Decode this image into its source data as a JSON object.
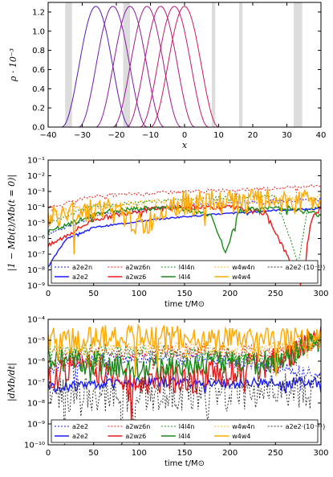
{
  "chart_data": [
    {
      "type": "line",
      "xlabel": "x",
      "ylabel": "ρ · 10⁻³",
      "xlim": [
        -40,
        40
      ],
      "ylim": [
        0,
        1.3
      ],
      "xticks": [
        "−40",
        "−30",
        "−20",
        "−10",
        "0",
        "10",
        "20",
        "30",
        "40"
      ],
      "yticks": [
        "0.0",
        "0.2",
        "0.4",
        "0.6",
        "0.8",
        "1.0",
        "1.2"
      ],
      "grey_bands": [
        [
          -35,
          -33
        ],
        [
          -18,
          -16
        ],
        [
          8,
          9
        ],
        [
          16,
          17
        ],
        [
          32,
          34.5
        ]
      ],
      "peak_value": 1.26,
      "peaks": [
        -26,
        -21,
        -16,
        -11,
        -7,
        -3,
        0
      ],
      "colors": [
        "#5a1ab0",
        "#7a1aa8",
        "#8f1a9c",
        "#a01a90",
        "#b01a80",
        "#c01a70",
        "#cc1a60"
      ],
      "grid": false
    },
    {
      "type": "line",
      "xlabel": "time t/M⊙",
      "ylabel": "|1 − Mb(t)/Mb(t = 0)|",
      "xlim": [
        0,
        300
      ],
      "ylim_log10": [
        -9,
        -1
      ],
      "xticks": [
        "0",
        "50",
        "100",
        "150",
        "200",
        "250",
        "300"
      ],
      "yticks": [
        "10⁻⁹",
        "10⁻⁸",
        "10⁻⁷",
        "10⁻⁶",
        "10⁻⁵",
        "10⁻⁴",
        "10⁻³",
        "10⁻²",
        "10⁻¹"
      ],
      "legend_position": "bottom",
      "series": [
        {
          "name": "a2e2n",
          "color": "#1a1aff",
          "dashed": true,
          "log10": [
            [
              0,
              -5.7
            ],
            [
              60,
              -4.4
            ],
            [
              150,
              -3.9
            ],
            [
              250,
              -3.6
            ],
            [
              300,
              -3.5
            ]
          ]
        },
        {
          "name": "a2e2",
          "color": "#1a1aff",
          "dashed": false,
          "log10": [
            [
              0,
              -7.8
            ],
            [
              20,
              -6.0
            ],
            [
              50,
              -5.3
            ],
            [
              100,
              -4.9
            ],
            [
              150,
              -4.6
            ],
            [
              200,
              -4.4
            ],
            [
              250,
              -4.2
            ],
            [
              300,
              -4.1
            ]
          ]
        },
        {
          "name": "a2wz6n",
          "color": "#e81a1a",
          "dashed": true,
          "log10": [
            [
              0,
              -4.0
            ],
            [
              50,
              -3.3
            ],
            [
              150,
              -3.0
            ],
            [
              250,
              -2.8
            ],
            [
              300,
              -2.6
            ]
          ]
        },
        {
          "name": "a2wz6",
          "color": "#e81a1a",
          "dashed": false,
          "log10": [
            [
              0,
              -6.5
            ],
            [
              50,
              -4.8
            ],
            [
              100,
              -4.2
            ],
            [
              150,
              -4.0
            ],
            [
              200,
              -4.0
            ],
            [
              240,
              -4.4
            ],
            [
              278,
              -8.9
            ],
            [
              290,
              -4.6
            ],
            [
              300,
              -4.1
            ]
          ]
        },
        {
          "name": "l4l4n",
          "color": "#1a8a1a",
          "dashed": true,
          "log10": [
            [
              0,
              -5.0
            ],
            [
              50,
              -3.9
            ],
            [
              150,
              -3.5
            ],
            [
              250,
              -3.3
            ],
            [
              275,
              -7.6
            ],
            [
              285,
              -4.2
            ],
            [
              300,
              -3.9
            ]
          ]
        },
        {
          "name": "l4l4",
          "color": "#1a8a1a",
          "dashed": false,
          "log10": [
            [
              0,
              -5.6
            ],
            [
              60,
              -4.3
            ],
            [
              100,
              -4.1
            ],
            [
              140,
              -4.0
            ],
            [
              180,
              -4.5
            ],
            [
              195,
              -7.0
            ],
            [
              210,
              -4.2
            ],
            [
              260,
              -4.0
            ],
            [
              300,
              -4.5
            ]
          ]
        },
        {
          "name": "w4w4n",
          "color": "#ffb11a",
          "dashed": true,
          "log10": [
            [
              0,
              -4.5
            ],
            [
              50,
              -4.0
            ],
            [
              100,
              -3.8
            ],
            [
              200,
              -3.6
            ],
            [
              300,
              -3.4
            ]
          ]
        },
        {
          "name": "w4w4",
          "color": "#ffa800",
          "dashed": false,
          "log10": [
            [
              0,
              -4.8
            ],
            [
              30,
              -4.3
            ],
            [
              60,
              -4.0
            ],
            [
              107,
              -5.3
            ],
            [
              130,
              -3.8
            ],
            [
              200,
              -3.7
            ],
            [
              300,
              -3.5
            ]
          ]
        },
        {
          "name": "a2e2·(10⁻¹¹)",
          "color": "#333333",
          "dashed": true,
          "log10": [
            [
              0,
              -9.5
            ],
            [
              300,
              -9.5
            ]
          ]
        }
      ]
    },
    {
      "type": "line",
      "xlabel": "time t/M⊙",
      "ylabel": "|dMb/dt|",
      "xlim": [
        0,
        300
      ],
      "ylim_log10": [
        -10,
        -4
      ],
      "xticks": [
        "0",
        "50",
        "100",
        "150",
        "200",
        "250",
        "300"
      ],
      "yticks": [
        "10⁻¹⁰",
        "10⁻⁹",
        "10⁻⁸",
        "10⁻⁷",
        "10⁻⁶",
        "10⁻⁵",
        "10⁻⁴"
      ],
      "legend_position": "bottom",
      "series": [
        {
          "name": "a2e2",
          "color": "#1a1aff",
          "dashed": true,
          "log10": [
            [
              0,
              -6.3
            ],
            [
              50,
              -6.0
            ],
            [
              100,
              -5.8
            ],
            [
              200,
              -6.0
            ],
            [
              250,
              -6.3
            ],
            [
              300,
              -6.5
            ]
          ]
        },
        {
          "name": "a2e2",
          "color": "#1a1aff",
          "dashed": false,
          "log10": [
            [
              0,
              -7.3
            ],
            [
              50,
              -7.1
            ],
            [
              100,
              -7.0
            ],
            [
              150,
              -7.0
            ],
            [
              200,
              -7.1
            ],
            [
              250,
              -7.0
            ],
            [
              300,
              -7.0
            ]
          ]
        },
        {
          "name": "a2wz6n",
          "color": "#e81a1a",
          "dashed": true,
          "log10": [
            [
              0,
              -6.0
            ],
            [
              50,
              -5.7
            ],
            [
              150,
              -5.5
            ],
            [
              250,
              -5.6
            ],
            [
              300,
              -5.0
            ]
          ]
        },
        {
          "name": "a2wz6",
          "color": "#e81a1a",
          "dashed": false,
          "log10": [
            [
              0,
              -7.0
            ],
            [
              30,
              -6.0
            ],
            [
              60,
              -6.5
            ],
            [
              100,
              -7.0
            ],
            [
              200,
              -6.5
            ],
            [
              250,
              -6.0
            ],
            [
              300,
              -4.9
            ]
          ]
        },
        {
          "name": "l4l4n",
          "color": "#1a8a1a",
          "dashed": true,
          "log10": [
            [
              0,
              -5.6
            ],
            [
              50,
              -5.5
            ],
            [
              150,
              -5.6
            ],
            [
              250,
              -5.8
            ],
            [
              300,
              -5.0
            ]
          ]
        },
        {
          "name": "l4l4",
          "color": "#1a8a1a",
          "dashed": false,
          "log10": [
            [
              0,
              -5.8
            ],
            [
              50,
              -6.1
            ],
            [
              100,
              -6.3
            ],
            [
              150,
              -6.2
            ],
            [
              200,
              -6.0
            ],
            [
              250,
              -6.1
            ],
            [
              300,
              -5.0
            ]
          ]
        },
        {
          "name": "w4w4n",
          "color": "#ffb11a",
          "dashed": true,
          "log10": [
            [
              0,
              -5.5
            ],
            [
              100,
              -5.3
            ],
            [
              200,
              -5.4
            ],
            [
              300,
              -5.2
            ]
          ]
        },
        {
          "name": "w4w4",
          "color": "#ffa800",
          "dashed": false,
          "log10": [
            [
              0,
              -5.0
            ],
            [
              100,
              -4.8
            ],
            [
              200,
              -5.0
            ],
            [
              300,
              -5.0
            ]
          ]
        },
        {
          "name": "a2e2·(10⁻¹¹)",
          "color": "#333333",
          "dashed": true,
          "log10": [
            [
              0,
              -7.5
            ],
            [
              100,
              -7.6
            ],
            [
              200,
              -7.5
            ],
            [
              300,
              -7.4
            ]
          ]
        }
      ]
    }
  ]
}
